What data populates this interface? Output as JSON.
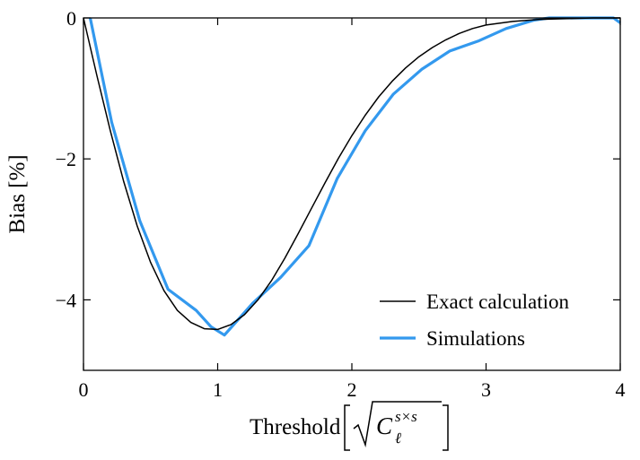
{
  "chart_data": {
    "type": "line",
    "xlabel": "Threshold",
    "xlabel_math": {
      "symbol": "C",
      "superscript": "s×s",
      "subscript": "ℓ"
    },
    "ylabel": "Bias [%]",
    "xlim": [
      0,
      4
    ],
    "ylim": [
      -5,
      0
    ],
    "xticks": [
      0,
      1,
      2,
      3,
      4
    ],
    "xtick_labels": [
      "0",
      "1",
      "2",
      "3",
      "4"
    ],
    "yticks": [
      0,
      -2,
      -4
    ],
    "ytick_labels": [
      "0",
      "−2",
      "−4"
    ],
    "grid": false,
    "legend_position": "lower-right",
    "series": [
      {
        "name": "Exact calculation",
        "color": "#000000",
        "x": [
          0,
          0.1,
          0.2,
          0.3,
          0.4,
          0.5,
          0.6,
          0.7,
          0.8,
          0.9,
          1.0,
          1.1,
          1.2,
          1.3,
          1.4,
          1.5,
          1.6,
          1.7,
          1.8,
          1.9,
          2.0,
          2.1,
          2.2,
          2.3,
          2.4,
          2.5,
          2.6,
          2.7,
          2.8,
          2.9,
          3.0,
          3.2,
          3.4,
          3.6,
          3.8,
          4.0
        ],
        "y": [
          0,
          -0.82,
          -1.6,
          -2.32,
          -2.95,
          -3.47,
          -3.87,
          -4.15,
          -4.32,
          -4.41,
          -4.42,
          -4.35,
          -4.21,
          -4.0,
          -3.73,
          -3.41,
          -3.06,
          -2.7,
          -2.34,
          -1.99,
          -1.67,
          -1.38,
          -1.12,
          -0.9,
          -0.71,
          -0.55,
          -0.42,
          -0.31,
          -0.22,
          -0.15,
          -0.1,
          -0.05,
          -0.02,
          -0.01,
          0,
          0
        ]
      },
      {
        "name": "Simulations",
        "color": "#3399ee",
        "x": [
          0.05,
          0.21,
          0.42,
          0.63,
          0.84,
          0.95,
          1.05,
          1.26,
          1.47,
          1.68,
          1.89,
          2.1,
          2.31,
          2.52,
          2.73,
          2.94,
          3.15,
          3.36,
          3.47,
          3.78,
          3.95,
          4.0
        ],
        "y": [
          0,
          -1.48,
          -2.88,
          -3.85,
          -4.15,
          -4.38,
          -4.5,
          -4.05,
          -3.68,
          -3.23,
          -2.28,
          -1.6,
          -1.08,
          -0.73,
          -0.47,
          -0.33,
          -0.15,
          -0.03,
          0,
          0,
          0,
          -0.07
        ]
      }
    ]
  }
}
